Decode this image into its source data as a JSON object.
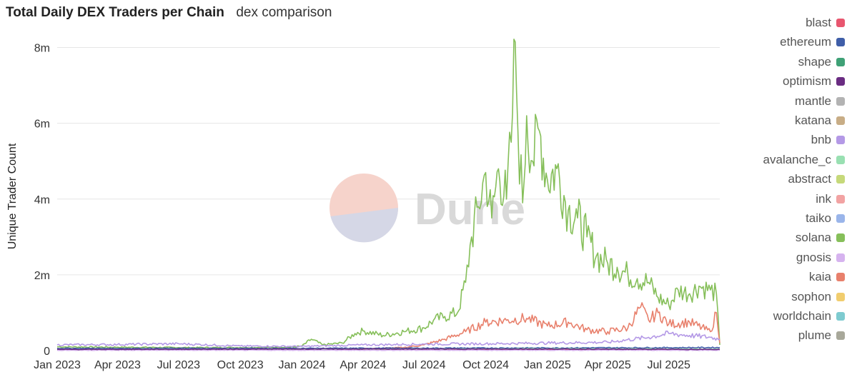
{
  "header": {
    "title": "Total Daily DEX Traders per Chain",
    "subtitle": "dex comparison"
  },
  "watermark": {
    "text": "Dune"
  },
  "colors": {
    "grid": "#e6e6e6",
    "axis_text": "#333333",
    "watermark_top": "#f6d3cb",
    "watermark_bottom": "#d5d7e6",
    "watermark_text": "#d9d9d9"
  },
  "legend": {
    "items": [
      {
        "label": "blast",
        "color": "#e8566f"
      },
      {
        "label": "ethereum",
        "color": "#3f5ea8"
      },
      {
        "label": "shape",
        "color": "#3fa176"
      },
      {
        "label": "optimism",
        "color": "#6a2c82"
      },
      {
        "label": "mantle",
        "color": "#b3b3b3"
      },
      {
        "label": "katana",
        "color": "#c8ad86"
      },
      {
        "label": "bnb",
        "color": "#b499e6"
      },
      {
        "label": "avalanche_c",
        "color": "#99e0b2"
      },
      {
        "label": "abstract",
        "color": "#c6d97a"
      },
      {
        "label": "ink",
        "color": "#f2a3a3"
      },
      {
        "label": "taiko",
        "color": "#9ab5ea"
      },
      {
        "label": "solana",
        "color": "#86bf5a"
      },
      {
        "label": "gnosis",
        "color": "#d6b3ef"
      },
      {
        "label": "kaia",
        "color": "#e8806c"
      },
      {
        "label": "sophon",
        "color": "#f1cd6e"
      },
      {
        "label": "worldchain",
        "color": "#7ecbd0"
      },
      {
        "label": "plume",
        "color": "#a8a89a"
      }
    ]
  },
  "chart_data": {
    "type": "line",
    "title": "Total Daily DEX Traders per Chain",
    "subtitle": "dex comparison",
    "xlabel": "",
    "ylabel": "Unique Trader Count",
    "x_ticks": [
      "Jan 2023",
      "Apr 2023",
      "Jul 2023",
      "Oct 2023",
      "Jan 2024",
      "Apr 2024",
      "Jul 2024",
      "Oct 2024",
      "Jan 2025",
      "Apr 2025",
      "Jul 2025"
    ],
    "x_range": [
      "2023-01-01",
      "2025-09-15"
    ],
    "y_ticks": [
      "0",
      "2m",
      "4m",
      "6m",
      "8m"
    ],
    "ylim": [
      0,
      8500000
    ],
    "grid": true,
    "legend_position": "right",
    "series": [
      {
        "name": "solana",
        "color": "#86bf5a",
        "points": [
          [
            "2023-01-01",
            100000
          ],
          [
            "2023-04-01",
            90000
          ],
          [
            "2023-07-01",
            80000
          ],
          [
            "2023-10-01",
            80000
          ],
          [
            "2023-12-15",
            90000
          ],
          [
            "2024-01-01",
            120000
          ],
          [
            "2024-01-15",
            300000
          ],
          [
            "2024-02-01",
            150000
          ],
          [
            "2024-03-01",
            200000
          ],
          [
            "2024-03-20",
            450000
          ],
          [
            "2024-04-01",
            520000
          ],
          [
            "2024-05-01",
            400000
          ],
          [
            "2024-06-01",
            500000
          ],
          [
            "2024-07-01",
            600000
          ],
          [
            "2024-07-15",
            800000
          ],
          [
            "2024-08-01",
            900000
          ],
          [
            "2024-08-20",
            1000000
          ],
          [
            "2024-09-01",
            1800000
          ],
          [
            "2024-09-10",
            3000000
          ],
          [
            "2024-09-20",
            3800000
          ],
          [
            "2024-10-01",
            4700000
          ],
          [
            "2024-10-10",
            3500000
          ],
          [
            "2024-10-20",
            4800000
          ],
          [
            "2024-11-01",
            4000000
          ],
          [
            "2024-11-08",
            5500000
          ],
          [
            "2024-11-14",
            8150000
          ],
          [
            "2024-11-18",
            5800000
          ],
          [
            "2024-11-25",
            3900000
          ],
          [
            "2024-12-01",
            6200000
          ],
          [
            "2024-12-10",
            5000000
          ],
          [
            "2024-12-20",
            5800000
          ],
          [
            "2025-01-01",
            4500000
          ],
          [
            "2025-01-15",
            4800000
          ],
          [
            "2025-02-01",
            3700000
          ],
          [
            "2025-02-15",
            3500000
          ],
          [
            "2025-03-01",
            3000000
          ],
          [
            "2025-03-15",
            2500000
          ],
          [
            "2025-04-01",
            2300000
          ],
          [
            "2025-04-15",
            2200000
          ],
          [
            "2025-05-01",
            2000000
          ],
          [
            "2025-05-15",
            1900000
          ],
          [
            "2025-06-01",
            1800000
          ],
          [
            "2025-06-15",
            1400000
          ],
          [
            "2025-07-01",
            1200000
          ],
          [
            "2025-07-15",
            1600000
          ],
          [
            "2025-08-01",
            1500000
          ],
          [
            "2025-08-15",
            1700000
          ],
          [
            "2025-09-01",
            1600000
          ],
          [
            "2025-09-10",
            1500000
          ],
          [
            "2025-09-15",
            150000
          ]
        ]
      },
      {
        "name": "kaia",
        "color": "#e8806c",
        "points": [
          [
            "2023-01-01",
            20000
          ],
          [
            "2024-04-01",
            50000
          ],
          [
            "2024-06-01",
            80000
          ],
          [
            "2024-07-01",
            150000
          ],
          [
            "2024-08-01",
            300000
          ],
          [
            "2024-09-01",
            500000
          ],
          [
            "2024-10-01",
            750000
          ],
          [
            "2024-11-01",
            800000
          ],
          [
            "2024-12-01",
            850000
          ],
          [
            "2025-01-01",
            650000
          ],
          [
            "2025-02-01",
            750000
          ],
          [
            "2025-03-01",
            550000
          ],
          [
            "2025-04-01",
            500000
          ],
          [
            "2025-05-01",
            600000
          ],
          [
            "2025-05-20",
            1150000
          ],
          [
            "2025-06-01",
            800000
          ],
          [
            "2025-06-15",
            1000000
          ],
          [
            "2025-07-01",
            700000
          ],
          [
            "2025-08-01",
            750000
          ],
          [
            "2025-09-01",
            500000
          ],
          [
            "2025-09-10",
            1000000
          ],
          [
            "2025-09-15",
            200000
          ]
        ]
      },
      {
        "name": "bnb",
        "color": "#b499e6",
        "points": [
          [
            "2023-01-01",
            150000
          ],
          [
            "2023-04-01",
            160000
          ],
          [
            "2023-07-01",
            180000
          ],
          [
            "2023-10-01",
            120000
          ],
          [
            "2024-01-01",
            110000
          ],
          [
            "2024-04-01",
            150000
          ],
          [
            "2024-07-01",
            170000
          ],
          [
            "2024-10-01",
            180000
          ],
          [
            "2025-01-01",
            200000
          ],
          [
            "2025-04-01",
            220000
          ],
          [
            "2025-06-01",
            350000
          ],
          [
            "2025-07-01",
            450000
          ],
          [
            "2025-08-01",
            400000
          ],
          [
            "2025-09-01",
            350000
          ],
          [
            "2025-09-15",
            300000
          ]
        ]
      },
      {
        "name": "ethereum",
        "color": "#3f5ea8",
        "points": [
          [
            "2023-01-01",
            60000
          ],
          [
            "2024-01-01",
            60000
          ],
          [
            "2025-01-01",
            70000
          ],
          [
            "2025-09-15",
            80000
          ]
        ]
      },
      {
        "name": "blast",
        "color": "#e8566f",
        "points": [
          [
            "2024-03-01",
            20000
          ],
          [
            "2024-06-01",
            40000
          ],
          [
            "2025-01-01",
            30000
          ],
          [
            "2025-09-15",
            20000
          ]
        ]
      },
      {
        "name": "avalanche_c",
        "color": "#99e0b2",
        "points": [
          [
            "2023-01-01",
            30000
          ],
          [
            "2024-06-01",
            40000
          ],
          [
            "2025-01-01",
            50000
          ],
          [
            "2025-09-15",
            40000
          ]
        ]
      },
      {
        "name": "gnosis",
        "color": "#d6b3ef",
        "points": [
          [
            "2023-01-01",
            10000
          ],
          [
            "2025-09-15",
            10000
          ]
        ]
      },
      {
        "name": "optimism",
        "color": "#6a2c82",
        "points": [
          [
            "2023-01-01",
            30000
          ],
          [
            "2024-01-01",
            40000
          ],
          [
            "2025-01-01",
            40000
          ],
          [
            "2025-09-15",
            30000
          ]
        ]
      }
    ]
  }
}
